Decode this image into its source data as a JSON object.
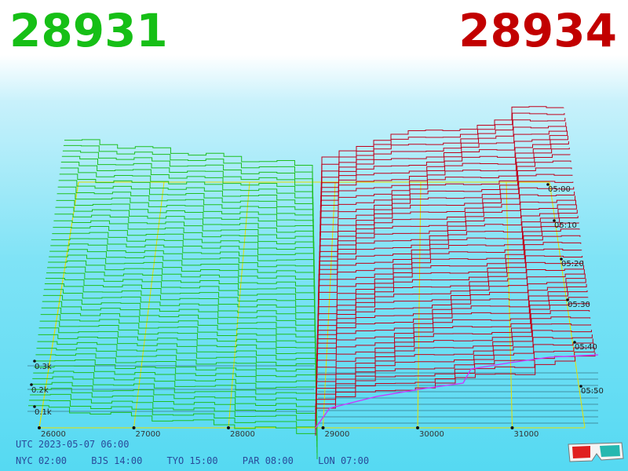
{
  "header": {
    "bid_price": "28931",
    "ask_price": "28934",
    "bid_color": "#16bf16",
    "ask_color": "#c20000"
  },
  "chart_data": {
    "type": "area",
    "x_ticks": [
      "26000",
      "27000",
      "28000",
      "29000",
      "30000",
      "31000"
    ],
    "y_ticks": [
      "0.1k",
      "0.2k",
      "0.3k"
    ],
    "time_ticks": [
      "05:00",
      "05:10",
      "05:20",
      "05:30",
      "05:40",
      "05:50"
    ],
    "x_range": [
      26000,
      31600
    ],
    "series": [
      {
        "color": "#1fbf1f"
      },
      {
        "color": "#c0001a"
      }
    ],
    "current_line_color": "#cc33ff",
    "grid": true
  },
  "footer": {
    "utc": "UTC 2023-05-07 06:00",
    "cities": [
      "NYC 02:00",
      "BJS 14:00",
      "TYO 15:00",
      "PAR 08:00",
      "LON 07:00"
    ]
  },
  "icons": {
    "glasses": "3d-glasses-icon"
  }
}
